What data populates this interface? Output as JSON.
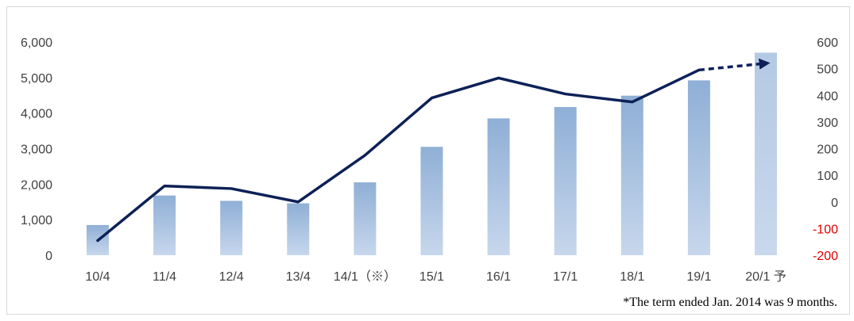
{
  "chart_data": {
    "type": "bar",
    "categories": [
      "10/4",
      "11/4",
      "12/4",
      "13/4",
      "14/1（※）",
      "15/1",
      "16/1",
      "17/1",
      "18/1",
      "19/1",
      "20/1 予"
    ],
    "series": [
      {
        "type": "bar",
        "axis": "left",
        "values": [
          850,
          1680,
          1530,
          1460,
          2050,
          3050,
          3850,
          4170,
          4490,
          4920,
          5700
        ],
        "forecast_index": 10,
        "color": "#8fafd6",
        "forecast_color": "#b4c9e4"
      },
      {
        "type": "line",
        "axis": "right",
        "values": [
          -145,
          60,
          50,
          0,
          175,
          390,
          465,
          405,
          375,
          495,
          520
        ],
        "forecast_from_index": 9,
        "color": "#0d2157"
      }
    ],
    "y_left": {
      "ylim": [
        0,
        6000
      ],
      "ticks": [
        "0",
        "1,000",
        "2,000",
        "3,000",
        "4,000",
        "5,000",
        "6,000"
      ]
    },
    "y_right": {
      "ylim": [
        -200,
        600
      ],
      "ticks": [
        "-200",
        "-100",
        "0",
        "100",
        "200",
        "300",
        "400",
        "500",
        "600"
      ],
      "negative_color": "#e00000"
    },
    "grid": false,
    "note": "*The term ended Jan. 2014 was 9 months."
  }
}
